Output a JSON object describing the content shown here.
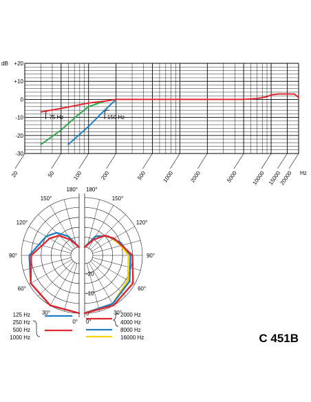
{
  "chart_data": [
    {
      "type": "line",
      "title": "",
      "ylabel": "dB",
      "xlabel": "Hz",
      "x_scale": "log",
      "xlim": [
        20,
        20000
      ],
      "ylim": [
        -30,
        20
      ],
      "y_ticks": [
        "+20",
        "+10",
        "0",
        "-10",
        "-20",
        "-30"
      ],
      "x_ticks": [
        "20",
        "50",
        "100",
        "200",
        "500",
        "1000",
        "2000",
        "5000",
        "10000",
        "15000",
        "20000"
      ],
      "annotations": [
        "75 Hz",
        "150 Hz"
      ],
      "series": [
        {
          "color": "#e0262c",
          "x": [
            30,
            50,
            100,
            150,
            200,
            300,
            500,
            1000,
            2000,
            5000,
            7000,
            9000,
            10000,
            12000,
            15000,
            18000,
            20000
          ],
          "y": [
            -7,
            -5,
            -2,
            -1,
            0,
            0,
            0,
            0,
            0,
            0,
            0.5,
            1.5,
            2.5,
            3,
            3,
            3,
            1
          ]
        },
        {
          "color": "#2aa84a",
          "x": [
            30,
            50,
            75,
            100,
            150
          ],
          "y": [
            -25,
            -17,
            -9,
            -4,
            -1
          ]
        },
        {
          "color": "#1b7fc4",
          "x": [
            60,
            100,
            150,
            200
          ],
          "y": [
            -25,
            -15,
            -6,
            0
          ]
        }
      ]
    },
    {
      "type": "polar",
      "angle_labels": [
        "180°",
        "150°",
        "120°",
        "90°",
        "60°",
        "30°",
        "0°"
      ],
      "radial_labels": [
        "-20",
        "-10",
        "0"
      ],
      "rlim": [
        -25,
        0
      ],
      "left_half": [
        {
          "color": "#1b7fc4",
          "label": "125 Hz / 250 Hz",
          "angles": [
            0,
            30,
            60,
            90,
            120,
            135,
            150,
            180
          ],
          "levels": [
            0,
            0,
            -1,
            -4,
            -10,
            -13,
            -18,
            -25
          ]
        },
        {
          "color": "#e0262c",
          "label": "500 Hz / 1000 Hz",
          "angles": [
            0,
            30,
            60,
            90,
            120,
            135,
            150,
            180
          ],
          "levels": [
            0,
            0,
            -1,
            -5,
            -12,
            -15,
            -20,
            -25
          ]
        }
      ],
      "right_half": [
        {
          "color": "#e0262c",
          "label": "2000 Hz / 4000 Hz",
          "angles": [
            0,
            30,
            60,
            90,
            120,
            135,
            150,
            180
          ],
          "levels": [
            0,
            0,
            -1,
            -5,
            -12,
            -15,
            -20,
            -25
          ]
        },
        {
          "color": "#1b7fc4",
          "label": "8000 Hz",
          "angles": [
            0,
            30,
            60,
            90,
            110,
            130,
            150,
            180
          ],
          "levels": [
            0,
            -1,
            -3,
            -6,
            -10,
            -14,
            -18,
            -25
          ]
        },
        {
          "color": "#f5d20a",
          "label": "16000 Hz",
          "angles": [
            0,
            30,
            60,
            90,
            110,
            130,
            150,
            180
          ],
          "levels": [
            0,
            -1,
            -4,
            -7,
            -11,
            -14,
            -18,
            -25
          ]
        }
      ]
    }
  ],
  "legend": {
    "left_labels": [
      "125 Hz",
      "250 Hz",
      "500 Hz",
      "1000 Hz"
    ],
    "right_labels": [
      "2000 Hz",
      "4000 Hz",
      "8000 Hz",
      "16000 Hz"
    ]
  },
  "model": "C 451B"
}
